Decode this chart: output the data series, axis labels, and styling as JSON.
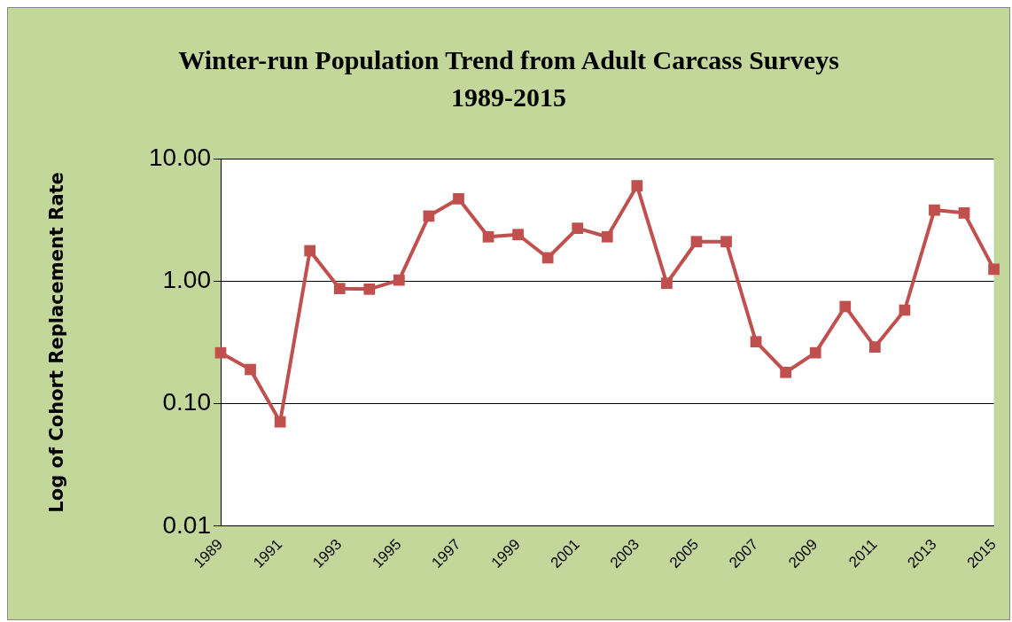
{
  "chart_data": {
    "type": "line",
    "title": "Winter-run  Population Trend from Adult Carcass Surveys 1989-2015",
    "ylabel": "Log of Cohort Replacement Rate",
    "categories": [
      "1989",
      null,
      "1991",
      null,
      "1993",
      null,
      "1995",
      null,
      "1997",
      null,
      "1999",
      null,
      "2001",
      null,
      "2003",
      null,
      "2005",
      null,
      "2007",
      null,
      "2009",
      null,
      "2011",
      null,
      "2013",
      null,
      "2015"
    ],
    "series": [
      {
        "color": "#c0504d",
        "values": [
          0.26,
          0.19,
          0.071,
          1.77,
          0.87,
          0.86,
          1.02,
          3.4,
          4.7,
          2.3,
          2.4,
          1.55,
          2.7,
          2.3,
          6.0,
          0.96,
          2.1,
          2.1,
          0.32,
          0.18,
          0.26,
          0.62,
          0.29,
          0.58,
          3.8,
          3.6,
          1.25
        ]
      }
    ],
    "log": "y",
    "ylim": [
      0.01,
      10
    ],
    "yticks": [
      {
        "value": 0.01,
        "label": "0.01"
      },
      {
        "value": 0.1,
        "label": "0.10"
      },
      {
        "value": 1,
        "label": "1.00"
      },
      {
        "value": 10,
        "label": "10.00"
      }
    ],
    "grid": "y",
    "marker": "square",
    "line_style": "solid",
    "legend": false
  }
}
